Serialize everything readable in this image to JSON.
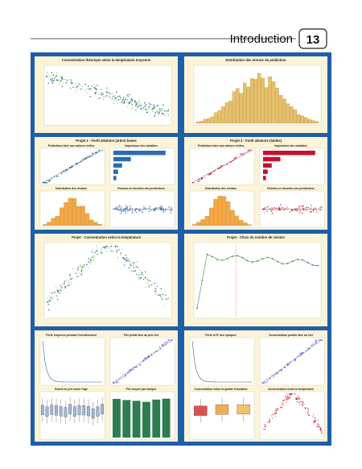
{
  "header": {
    "section": "Introduction",
    "page": "13"
  },
  "panels": [
    {
      "title": "Concentration théorique selon la température moyenne"
    },
    {
      "title": "Distribution des erreurs de prédiction"
    },
    {
      "title": "Projet 1 - Forêt aléatoire (arbre) bases",
      "subplots": [
        "Prédictions face aux valeurs réelles",
        "Importance des variables",
        "Distribution des résidus",
        "Résidus en fonction des prédictions"
      ]
    },
    {
      "title": "Projet 2 - Forêt aléatoire (tables)",
      "subplots": [
        "Prédictions face aux valeurs réelles",
        "Importance des variables",
        "Distribution des résidus",
        "Résidus en fonction des prédictions"
      ]
    },
    {
      "title": "Projet - Concentration selon la température"
    },
    {
      "title": "Projet - Choix du nombre de voisins"
    },
    {
      "subplots": [
        "Perte moyenne pendant l'entraînement",
        "Prix prédit face au prix réel",
        "Ecarts de prix selon l'âge",
        "Prix moyen par marque"
      ]
    },
    {
      "subplots": [
        "Perte et R² des époques",
        "Concentration prédite face au réel",
        "Concentration selon la qualité d'isolation",
        "Concentration selon la température"
      ]
    }
  ]
}
